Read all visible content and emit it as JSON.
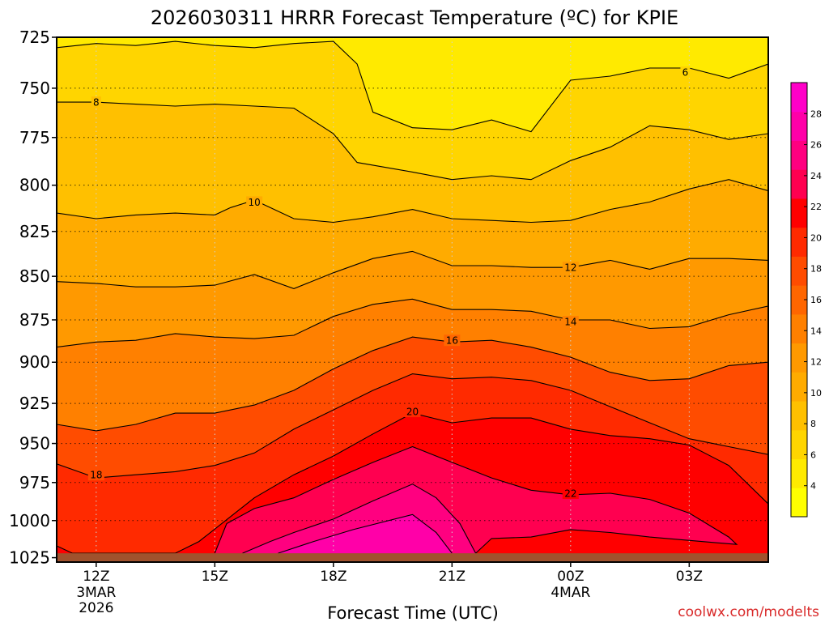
{
  "chart_data": {
    "type": "heatmap",
    "title": "2026030311 HRRR Forecast Temperature (ºC) for KPIE",
    "xlabel": "Forecast Time (UTC)",
    "ylabel": "",
    "credit": "coolwx.com/modelts",
    "x_ticks": [
      {
        "hour": 12,
        "label": "12Z",
        "sub1": "3MAR",
        "sub2": "2026"
      },
      {
        "hour": 15,
        "label": "15Z",
        "sub1": "",
        "sub2": ""
      },
      {
        "hour": 18,
        "label": "18Z",
        "sub1": "",
        "sub2": ""
      },
      {
        "hour": 21,
        "label": "21Z",
        "sub1": "",
        "sub2": ""
      },
      {
        "hour": 24,
        "label": "00Z",
        "sub1": "4MAR",
        "sub2": ""
      },
      {
        "hour": 27,
        "label": "03Z",
        "sub1": "",
        "sub2": ""
      }
    ],
    "xlim": [
      11,
      29
    ],
    "y_ticks": [
      725,
      750,
      775,
      800,
      825,
      850,
      875,
      900,
      925,
      950,
      975,
      1000,
      1025
    ],
    "y_tick_labels": [
      "725",
      "750",
      "775",
      "800",
      "825",
      "850",
      "875",
      "900",
      "925",
      "950",
      "975",
      "1000",
      "1025"
    ],
    "ylim": [
      1028,
      725
    ],
    "y_scale": "log-pressure",
    "grid": true,
    "colorbar": {
      "min": 2,
      "max": 30,
      "ticks": [
        4,
        6,
        8,
        10,
        12,
        14,
        16,
        18,
        20,
        22,
        24,
        26,
        28
      ],
      "tick_labels": [
        "4",
        "6",
        "8",
        "10",
        "12",
        "14",
        "16",
        "18",
        "20",
        "22",
        "24",
        "26",
        "28"
      ],
      "colors": [
        "#ffff00",
        "#ffea00",
        "#ffd500",
        "#ffc000",
        "#ffab00",
        "#ff9900",
        "#ff8000",
        "#ff6600",
        "#ff4c00",
        "#ff2a00",
        "#ff0000",
        "#ff0050",
        "#ff0080",
        "#ff00a8",
        "#ff00c8"
      ]
    },
    "surface_pressure": 1022,
    "contours": [
      {
        "level": 6,
        "label": "6",
        "label_at": {
          "hour": 26.9,
          "p": 742
        },
        "points": [
          [
            11.0,
            730
          ],
          [
            12.0,
            728
          ],
          [
            13.0,
            729
          ],
          [
            14.0,
            727
          ],
          [
            15.0,
            729
          ],
          [
            16.0,
            730
          ],
          [
            17.0,
            728
          ],
          [
            18.0,
            727
          ],
          [
            18.6,
            738
          ],
          [
            19.0,
            762
          ],
          [
            20.0,
            770
          ],
          [
            21.0,
            771
          ],
          [
            22.0,
            766
          ],
          [
            23.0,
            772
          ],
          [
            24.0,
            746
          ],
          [
            25.0,
            744
          ],
          [
            26.0,
            740
          ],
          [
            27.0,
            740
          ],
          [
            28.0,
            745
          ],
          [
            29.0,
            738
          ]
        ]
      },
      {
        "level": 8,
        "label": "8",
        "label_at": {
          "hour": 12.0,
          "p": 757
        },
        "points": [
          [
            11.0,
            757
          ],
          [
            12.0,
            757
          ],
          [
            13.0,
            758
          ],
          [
            14.0,
            759
          ],
          [
            15.0,
            758
          ],
          [
            16.0,
            759
          ],
          [
            17.0,
            760
          ],
          [
            18.0,
            773
          ],
          [
            18.6,
            788
          ],
          [
            20.0,
            793
          ],
          [
            21.0,
            797
          ],
          [
            22.0,
            795
          ],
          [
            23.0,
            797
          ],
          [
            24.0,
            787
          ],
          [
            25.0,
            780
          ],
          [
            26.0,
            769
          ],
          [
            27.0,
            771
          ],
          [
            28.0,
            776
          ],
          [
            29.0,
            773
          ]
        ]
      },
      {
        "level": 10,
        "label": "10",
        "label_at": {
          "hour": 16.0,
          "p": 809
        },
        "points": [
          [
            11.0,
            815
          ],
          [
            12.0,
            818
          ],
          [
            13.0,
            816
          ],
          [
            14.0,
            815
          ],
          [
            15.0,
            816
          ],
          [
            15.4,
            812
          ],
          [
            16.0,
            808
          ],
          [
            17.0,
            818
          ],
          [
            18.0,
            820
          ],
          [
            19.0,
            817
          ],
          [
            20.0,
            813
          ],
          [
            21.0,
            818
          ],
          [
            22.0,
            819
          ],
          [
            23.0,
            820
          ],
          [
            24.0,
            819
          ],
          [
            25.0,
            813
          ],
          [
            26.0,
            809
          ],
          [
            27.0,
            802
          ],
          [
            28.0,
            797
          ],
          [
            29.0,
            803
          ]
        ]
      },
      {
        "level": 12,
        "label": "12",
        "label_at": {
          "hour": 24.0,
          "p": 845
        },
        "points": [
          [
            11.0,
            853
          ],
          [
            12.0,
            854
          ],
          [
            13.0,
            856
          ],
          [
            14.0,
            856
          ],
          [
            15.0,
            855
          ],
          [
            16.0,
            849
          ],
          [
            17.0,
            857
          ],
          [
            18.0,
            848
          ],
          [
            19.0,
            840
          ],
          [
            20.0,
            836
          ],
          [
            21.0,
            844
          ],
          [
            22.0,
            844
          ],
          [
            23.0,
            845
          ],
          [
            24.0,
            845
          ],
          [
            25.0,
            841
          ],
          [
            26.0,
            846
          ],
          [
            27.0,
            840
          ],
          [
            28.0,
            840
          ],
          [
            29.0,
            841
          ]
        ]
      },
      {
        "level": 14,
        "label": "14",
        "label_at": {
          "hour": 24.0,
          "p": 876
        },
        "points": [
          [
            11.0,
            891
          ],
          [
            12.0,
            888
          ],
          [
            13.0,
            887
          ],
          [
            14.0,
            883
          ],
          [
            15.0,
            885
          ],
          [
            16.0,
            886
          ],
          [
            17.0,
            884
          ],
          [
            18.0,
            873
          ],
          [
            19.0,
            866
          ],
          [
            20.0,
            863
          ],
          [
            21.0,
            869
          ],
          [
            22.0,
            869
          ],
          [
            23.0,
            870
          ],
          [
            24.0,
            875
          ],
          [
            25.0,
            875
          ],
          [
            26.0,
            880
          ],
          [
            27.0,
            879
          ],
          [
            28.0,
            872
          ],
          [
            29.0,
            867
          ]
        ]
      },
      {
        "level": 16,
        "label": "16",
        "label_at": {
          "hour": 21.0,
          "p": 887
        },
        "points": [
          [
            11.0,
            938
          ],
          [
            12.0,
            942
          ],
          [
            13.0,
            938
          ],
          [
            14.0,
            931
          ],
          [
            15.0,
            931
          ],
          [
            16.0,
            926
          ],
          [
            17.0,
            917
          ],
          [
            18.0,
            904
          ],
          [
            19.0,
            893
          ],
          [
            20.0,
            885
          ],
          [
            21.0,
            888
          ],
          [
            22.0,
            887
          ],
          [
            23.0,
            891
          ],
          [
            24.0,
            897
          ],
          [
            25.0,
            906
          ],
          [
            26.0,
            911
          ],
          [
            27.0,
            910
          ],
          [
            28.0,
            902
          ],
          [
            29.0,
            900
          ]
        ]
      },
      {
        "level": 18,
        "label": "18",
        "label_at": {
          "hour": 12.0,
          "p": 970
        },
        "points": [
          [
            11.0,
            963
          ],
          [
            12.0,
            972
          ],
          [
            13.0,
            970
          ],
          [
            14.0,
            968
          ],
          [
            15.0,
            964
          ],
          [
            16.0,
            956
          ],
          [
            17.0,
            941
          ],
          [
            18.0,
            929
          ],
          [
            19.0,
            917
          ],
          [
            20.0,
            907
          ],
          [
            21.0,
            910
          ],
          [
            22.0,
            909
          ],
          [
            23.0,
            911
          ],
          [
            24.0,
            917
          ],
          [
            25.0,
            927
          ],
          [
            26.0,
            937
          ],
          [
            27.0,
            947
          ],
          [
            28.0,
            952
          ],
          [
            29.0,
            957
          ]
        ]
      },
      {
        "level": 20,
        "label": "20",
        "label_at": {
          "hour": 20.0,
          "p": 930
        },
        "points": [
          [
            11.0,
            1017
          ],
          [
            11.4,
            1022
          ],
          [
            14.0,
            1022
          ],
          [
            14.6,
            1014
          ],
          [
            16.0,
            985
          ],
          [
            17.0,
            970
          ],
          [
            18.0,
            958
          ],
          [
            19.0,
            944
          ],
          [
            20.0,
            931
          ],
          [
            21.0,
            937
          ],
          [
            22.0,
            934
          ],
          [
            23.0,
            934
          ],
          [
            24.0,
            941
          ],
          [
            25.0,
            945
          ],
          [
            26.0,
            947
          ],
          [
            27.0,
            951
          ],
          [
            28.0,
            964
          ],
          [
            29.0,
            989
          ]
        ]
      },
      {
        "level": 22,
        "label": "22",
        "label_at": {
          "hour": 24.0,
          "p": 982
        },
        "points": [
          [
            15.0,
            1022
          ],
          [
            15.3,
            1002
          ],
          [
            16.0,
            992
          ],
          [
            17.0,
            985
          ],
          [
            18.0,
            973
          ],
          [
            19.0,
            962
          ],
          [
            20.0,
            952
          ],
          [
            21.0,
            962
          ],
          [
            22.0,
            972
          ],
          [
            23.0,
            980
          ],
          [
            24.0,
            983
          ],
          [
            25.0,
            982
          ],
          [
            26.0,
            986
          ],
          [
            27.0,
            995
          ],
          [
            28.0,
            1011
          ],
          [
            28.2,
            1016
          ],
          [
            26.0,
            1011
          ],
          [
            25.0,
            1008
          ],
          [
            24.0,
            1006
          ],
          [
            23.0,
            1011
          ],
          [
            22.0,
            1012
          ],
          [
            21.6,
            1022
          ]
        ]
      },
      {
        "level": 24,
        "label": "",
        "label_at": null,
        "points": [
          [
            15.7,
            1022
          ],
          [
            16.4,
            1014
          ],
          [
            17.0,
            1008
          ],
          [
            18.0,
            999
          ],
          [
            19.0,
            987
          ],
          [
            20.0,
            976
          ],
          [
            20.6,
            985
          ],
          [
            21.2,
            1002
          ],
          [
            21.6,
            1022
          ]
        ]
      },
      {
        "level": 26,
        "label": "",
        "label_at": null,
        "points": [
          [
            16.6,
            1022
          ],
          [
            17.5,
            1014
          ],
          [
            18.5,
            1006
          ],
          [
            20.0,
            996
          ],
          [
            20.6,
            1008
          ],
          [
            21.0,
            1022
          ]
        ]
      }
    ]
  }
}
